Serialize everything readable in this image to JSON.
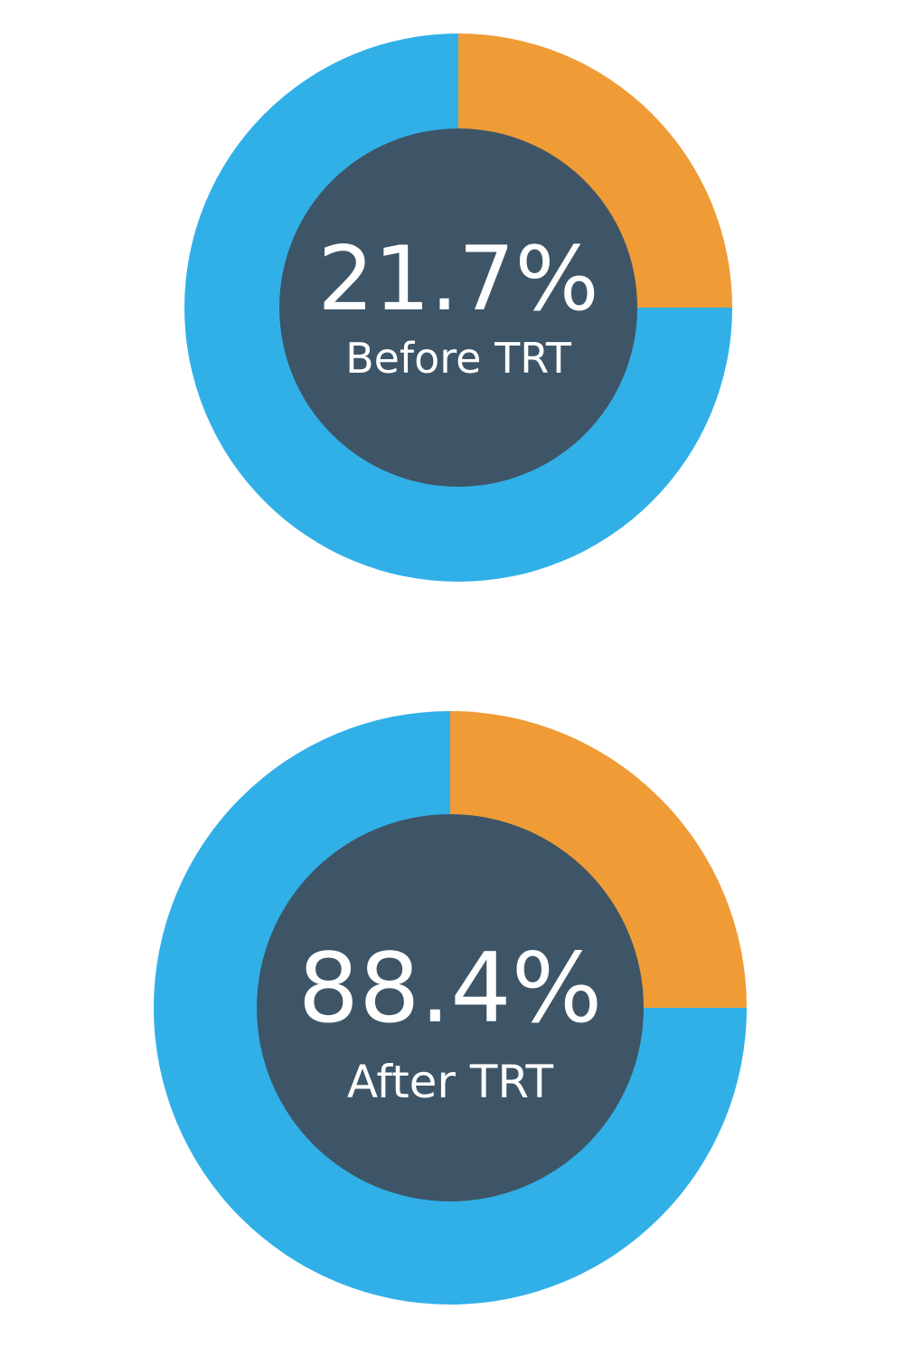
{
  "colors": {
    "ring": "#31b0e8",
    "slice": "#ef9b36",
    "center": "#3d5567",
    "text": "#ffffff"
  },
  "chart_data": [
    {
      "type": "pie",
      "variant": "donut",
      "center_value": "21.7%",
      "center_label": "Before TRT",
      "slices": [
        {
          "value": 25,
          "color": "#ef9b36"
        },
        {
          "value": 75,
          "color": "#31b0e8"
        }
      ]
    },
    {
      "type": "pie",
      "variant": "donut",
      "center_value": "88.4%",
      "center_label": "After TRT",
      "slices": [
        {
          "value": 25,
          "color": "#ef9b36"
        },
        {
          "value": 75,
          "color": "#31b0e8"
        }
      ]
    }
  ]
}
